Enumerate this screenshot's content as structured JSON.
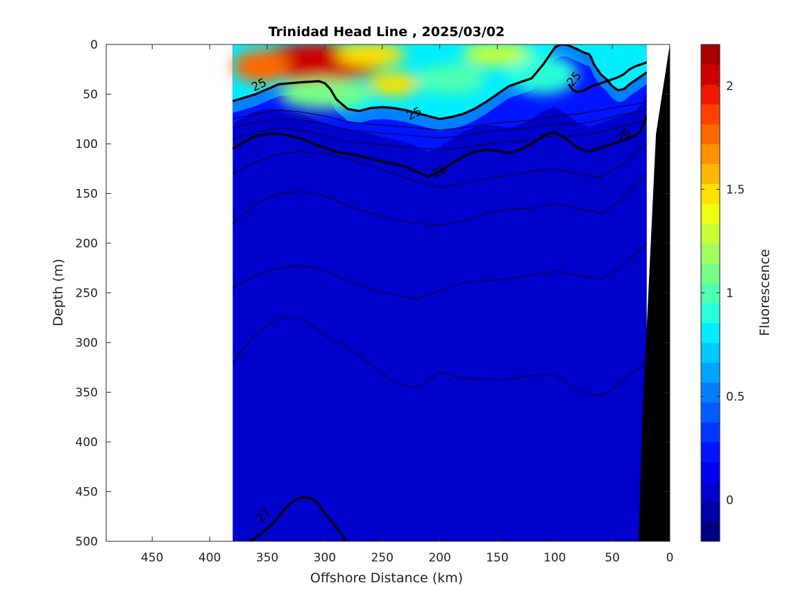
{
  "chart_data": {
    "type": "heatmap",
    "title": "Trinidad Head Line , 2025/03/02",
    "xlabel": "Offshore Distance (km)",
    "ylabel": "Depth (m)",
    "colorbar_label": "Fluorescence",
    "xlim": [
      490,
      0
    ],
    "ylim": [
      0,
      500
    ],
    "x_reversed": true,
    "y_reversed": true,
    "x_ticks": [
      450,
      400,
      350,
      300,
      250,
      200,
      150,
      100,
      50,
      0
    ],
    "y_ticks": [
      0,
      50,
      100,
      150,
      200,
      250,
      300,
      350,
      400,
      450,
      500
    ],
    "colorbar_range": [
      -0.2,
      2.2
    ],
    "colorbar_ticks": [
      0,
      0.5,
      1,
      1.5,
      2
    ],
    "colormap": [
      "#000080",
      "#0000a8",
      "#0000cc",
      "#0000f0",
      "#0014ff",
      "#0038ff",
      "#005cff",
      "#0080ff",
      "#00a4ff",
      "#00c8ff",
      "#00eeff",
      "#28ffd8",
      "#50ffaf",
      "#78ff87",
      "#a0ff5f",
      "#c8ff37",
      "#f0ff0f",
      "#ffe000",
      "#ffb800",
      "#ff9000",
      "#ff6800",
      "#ff4000",
      "#f01800",
      "#cc0000",
      "#a80000"
    ],
    "data_extent_km": [
      380,
      20
    ],
    "bottom_color": "#000000",
    "isopycnal_labels": [
      {
        "label": "25",
        "x": 357,
        "y": 41,
        "angle": -25
      },
      {
        "label": "25",
        "x": 222,
        "y": 70,
        "angle": -25
      },
      {
        "label": "25",
        "x": 83,
        "y": 35,
        "angle": -50
      },
      {
        "label": "26",
        "x": 200,
        "y": 128,
        "angle": -30
      },
      {
        "label": "26",
        "x": 40,
        "y": 92,
        "angle": -40
      },
      {
        "label": "27",
        "x": 353,
        "y": 474,
        "angle": -50
      }
    ],
    "isopycnals_bold": [
      {
        "name": "25",
        "x": [
          380,
          360,
          350,
          340,
          320,
          305,
          300,
          295,
          290,
          280,
          270,
          260,
          250,
          240,
          230,
          220,
          210,
          200,
          190,
          180,
          170,
          160,
          150,
          140,
          130,
          120,
          110,
          100,
          95,
          90,
          80,
          75,
          70,
          68,
          66,
          60,
          55,
          50,
          45,
          40,
          35,
          30,
          25,
          20
        ],
        "y": [
          57,
          50,
          45,
          40,
          38,
          37,
          39,
          45,
          55,
          65,
          67,
          64,
          63,
          64,
          66,
          69,
          72,
          75,
          73,
          70,
          65,
          58,
          50,
          42,
          38,
          34,
          20,
          3,
          0,
          0,
          5,
          8,
          10,
          14,
          20,
          30,
          35,
          42,
          46,
          45,
          40,
          36,
          32,
          28
        ]
      },
      {
        "name": "25b",
        "x": [
          88,
          84,
          80,
          74,
          68,
          60,
          55,
          50,
          45,
          40,
          35,
          30,
          25,
          20
        ],
        "y": [
          40,
          46,
          48,
          46,
          42,
          39,
          37,
          35,
          33,
          30,
          25,
          22,
          20,
          18
        ]
      },
      {
        "name": "26",
        "x": [
          380,
          370,
          360,
          350,
          340,
          330,
          320,
          310,
          300,
          290,
          280,
          270,
          260,
          250,
          240,
          230,
          220,
          210,
          200,
          190,
          180,
          170,
          160,
          150,
          140,
          130,
          120,
          110,
          100,
          90,
          80,
          70,
          60,
          50,
          40,
          30,
          25,
          20
        ],
        "y": [
          105,
          98,
          92,
          90,
          90,
          92,
          95,
          100,
          104,
          108,
          110,
          112,
          115,
          118,
          120,
          123,
          128,
          133,
          128,
          120,
          113,
          108,
          106,
          107,
          109,
          106,
          100,
          92,
          88,
          95,
          104,
          108,
          104,
          100,
          96,
          92,
          86,
          72
        ]
      },
      {
        "name": "27",
        "x": [
          365,
          355,
          345,
          340,
          335,
          330,
          325,
          320,
          315,
          310,
          305,
          300,
          295,
          290,
          285,
          282
        ],
        "y": [
          500,
          492,
          482,
          475,
          468,
          462,
          458,
          456,
          456,
          458,
          463,
          472,
          478,
          486,
          493,
          500
        ]
      }
    ],
    "isopycnals_thin": [
      {
        "x": [
          380,
          360,
          340,
          320,
          300,
          280,
          260,
          240,
          220,
          200,
          180,
          160,
          140,
          120,
          100,
          80,
          60,
          40,
          20
        ],
        "y": [
          75,
          70,
          66,
          68,
          72,
          78,
          80,
          82,
          84,
          86,
          84,
          80,
          78,
          76,
          72,
          70,
          66,
          62,
          58
        ]
      },
      {
        "x": [
          380,
          360,
          340,
          320,
          300,
          280,
          260,
          240,
          220,
          200,
          180,
          160,
          140,
          120,
          100,
          80,
          60,
          40,
          20
        ],
        "y": [
          84,
          78,
          75,
          76,
          80,
          86,
          88,
          90,
          92,
          94,
          92,
          88,
          86,
          84,
          80,
          80,
          76,
          70,
          66
        ]
      },
      {
        "x": [
          380,
          360,
          340,
          320,
          300,
          280,
          260,
          240,
          220,
          200,
          180,
          160,
          140,
          120,
          100,
          80,
          60,
          40,
          20
        ],
        "y": [
          95,
          88,
          84,
          86,
          92,
          98,
          100,
          102,
          104,
          106,
          104,
          100,
          98,
          96,
          92,
          92,
          88,
          82,
          76
        ]
      },
      {
        "x": [
          380,
          360,
          340,
          320,
          300,
          280,
          260,
          240,
          220,
          200,
          180,
          160,
          140,
          120,
          100,
          80,
          60,
          40,
          20
        ],
        "y": [
          130,
          118,
          110,
          108,
          110,
          115,
          122,
          130,
          138,
          144,
          140,
          135,
          132,
          128,
          125,
          130,
          134,
          120,
          100
        ]
      },
      {
        "x": [
          380,
          360,
          340,
          320,
          300,
          280,
          260,
          240,
          220,
          200,
          180,
          160,
          140,
          120,
          100,
          80,
          60,
          40,
          20
        ],
        "y": [
          180,
          160,
          150,
          148,
          152,
          162,
          170,
          176,
          180,
          182,
          178,
          170,
          166,
          165,
          160,
          165,
          170,
          155,
          130
        ]
      },
      {
        "x": [
          380,
          360,
          340,
          320,
          300,
          280,
          260,
          240,
          220,
          200,
          180,
          160,
          140,
          120,
          100,
          80,
          60,
          40,
          20
        ],
        "y": [
          245,
          232,
          225,
          222,
          228,
          238,
          246,
          252,
          256,
          248,
          240,
          238,
          236,
          232,
          228,
          232,
          236,
          222,
          200
        ]
      },
      {
        "x": [
          380,
          360,
          340,
          320,
          300,
          280,
          260,
          240,
          220,
          200,
          180,
          160,
          140,
          120,
          100,
          80,
          60,
          40,
          20
        ],
        "y": [
          320,
          292,
          275,
          276,
          292,
          305,
          322,
          340,
          346,
          330,
          336,
          337,
          337,
          333,
          332,
          348,
          354,
          338,
          320
        ]
      }
    ],
    "chl_blobs": [
      {
        "x": 305,
        "y": 18,
        "rx": 55,
        "ry": 20,
        "v": 2.1
      },
      {
        "x": 355,
        "y": 22,
        "rx": 25,
        "ry": 16,
        "v": 1.8
      },
      {
        "x": 260,
        "y": 10,
        "rx": 30,
        "ry": 12,
        "v": 1.5
      },
      {
        "x": 240,
        "y": 40,
        "rx": 22,
        "ry": 12,
        "v": 1.45
      },
      {
        "x": 150,
        "y": 10,
        "rx": 30,
        "ry": 12,
        "v": 1.3
      },
      {
        "x": 300,
        "y": 50,
        "rx": 40,
        "ry": 15,
        "v": 1.1
      },
      {
        "x": 110,
        "y": 30,
        "rx": 30,
        "ry": 20,
        "v": 0.9
      },
      {
        "x": 190,
        "y": 35,
        "rx": 30,
        "ry": 15,
        "v": 1.0
      }
    ]
  }
}
